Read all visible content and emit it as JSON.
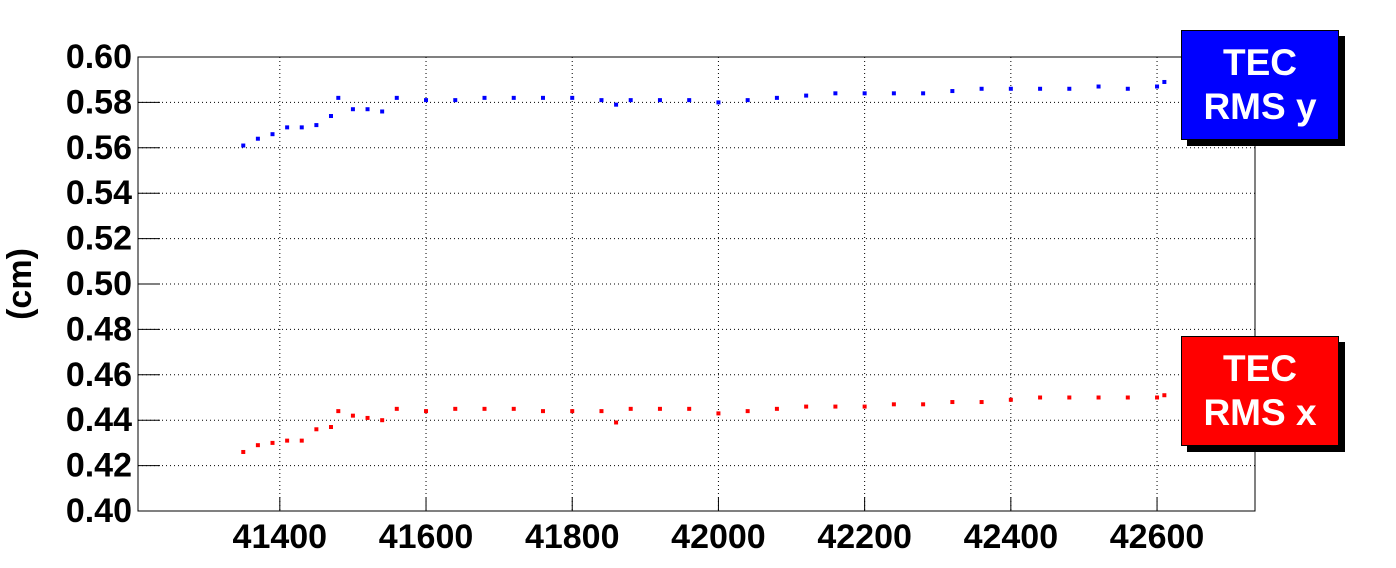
{
  "chart_data": {
    "type": "scatter",
    "y_label": "(cm)",
    "xlim": [
      41206,
      42734
    ],
    "ylim": [
      0.4,
      0.6
    ],
    "xticks": [
      41400,
      41600,
      41800,
      42000,
      42200,
      42400,
      42600
    ],
    "yticks": [
      {
        "value": 0.4,
        "label": "0.40"
      },
      0.42,
      0.44,
      0.46,
      0.48,
      {
        "value": 0.5,
        "label": "0.50"
      },
      0.52,
      0.54,
      0.56,
      0.58,
      {
        "value": 0.6,
        "label": "0.60"
      }
    ],
    "grid": true,
    "legend": "right",
    "x": [
      41350,
      41370,
      41390,
      41410,
      41430,
      41450,
      41470,
      41480,
      41500,
      41520,
      41540,
      41560,
      41600,
      41640,
      41680,
      41720,
      41760,
      41800,
      41840,
      41860,
      41880,
      41920,
      41960,
      42000,
      42040,
      42080,
      42120,
      42160,
      42200,
      42240,
      42280,
      42320,
      42360,
      42400,
      42440,
      42480,
      42520,
      42560,
      42600,
      42610
    ],
    "series": [
      {
        "name": "TEC RMS y",
        "color": "#0000ff",
        "values": [
          0.561,
          0.564,
          0.566,
          0.569,
          0.569,
          0.57,
          0.574,
          0.582,
          0.577,
          0.577,
          0.576,
          0.582,
          0.581,
          0.581,
          0.582,
          0.582,
          0.582,
          0.582,
          0.581,
          0.579,
          0.581,
          0.581,
          0.581,
          0.58,
          0.581,
          0.582,
          0.583,
          0.584,
          0.584,
          0.584,
          0.584,
          0.585,
          0.586,
          0.586,
          0.586,
          0.586,
          0.587,
          0.586,
          0.587,
          0.589
        ]
      },
      {
        "name": "TEC RMS x",
        "color": "#ff0000",
        "values": [
          0.426,
          0.429,
          0.43,
          0.431,
          0.431,
          0.436,
          0.437,
          0.444,
          0.442,
          0.441,
          0.44,
          0.445,
          0.444,
          0.445,
          0.445,
          0.445,
          0.444,
          0.444,
          0.444,
          0.439,
          0.445,
          0.445,
          0.445,
          0.443,
          0.444,
          0.445,
          0.446,
          0.446,
          0.446,
          0.447,
          0.447,
          0.448,
          0.448,
          0.449,
          0.45,
          0.45,
          0.45,
          0.45,
          0.45,
          0.451
        ]
      }
    ]
  }
}
